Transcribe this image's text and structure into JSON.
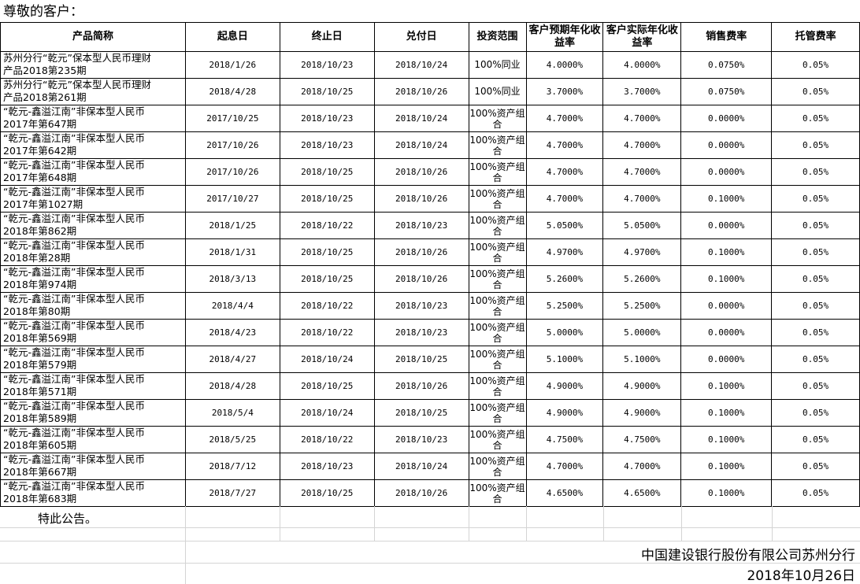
{
  "greeting": "尊敬的客户：",
  "headers": [
    "产品简称",
    "起息日",
    "终止日",
    "兑付日",
    "投资范围",
    "客户预期年化收益率",
    "客户实际年化收益率",
    "销售费率",
    "托管费率"
  ],
  "rows": [
    {
      "name": [
        "苏州分行“乾元”保本型人民币理财",
        "产品2018第235期"
      ],
      "start": "2018/1/26",
      "end": "2018/10/23",
      "pay": "2018/10/24",
      "scope": "100%同业",
      "expected": "4.0000%",
      "actual": "4.0000%",
      "sales_fee": "0.0750%",
      "custody_fee": "0.05%"
    },
    {
      "name": [
        "苏州分行“乾元”保本型人民币理财",
        "产品2018第261期"
      ],
      "start": "2018/4/28",
      "end": "2018/10/25",
      "pay": "2018/10/26",
      "scope": "100%同业",
      "expected": "3.7000%",
      "actual": "3.7000%",
      "sales_fee": "0.0750%",
      "custody_fee": "0.05%"
    },
    {
      "name": [
        "“乾元-鑫溢江南”非保本型人民币",
        "2017年第647期"
      ],
      "start": "2017/10/25",
      "end": "2018/10/23",
      "pay": "2018/10/24",
      "scope": "100%资产组合",
      "expected": "4.7000%",
      "actual": "4.7000%",
      "sales_fee": "0.0000%",
      "custody_fee": "0.05%"
    },
    {
      "name": [
        "“乾元-鑫溢江南”非保本型人民币",
        "2017年第642期"
      ],
      "start": "2017/10/26",
      "end": "2018/10/23",
      "pay": "2018/10/24",
      "scope": "100%资产组合",
      "expected": "4.7000%",
      "actual": "4.7000%",
      "sales_fee": "0.0000%",
      "custody_fee": "0.05%"
    },
    {
      "name": [
        "“乾元-鑫溢江南”非保本型人民币",
        "2017年第648期"
      ],
      "start": "2017/10/26",
      "end": "2018/10/25",
      "pay": "2018/10/26",
      "scope": "100%资产组合",
      "expected": "4.7000%",
      "actual": "4.7000%",
      "sales_fee": "0.0000%",
      "custody_fee": "0.05%"
    },
    {
      "name": [
        "“乾元-鑫溢江南”非保本型人民币",
        "2017年第1027期"
      ],
      "start": "2017/10/27",
      "end": "2018/10/25",
      "pay": "2018/10/26",
      "scope": "100%资产组合",
      "expected": "4.7000%",
      "actual": "4.7000%",
      "sales_fee": "0.1000%",
      "custody_fee": "0.05%"
    },
    {
      "name": [
        "“乾元-鑫溢江南”非保本型人民币",
        "2018年第862期"
      ],
      "start": "2018/1/25",
      "end": "2018/10/22",
      "pay": "2018/10/23",
      "scope": "100%资产组合",
      "expected": "5.0500%",
      "actual": "5.0500%",
      "sales_fee": "0.0000%",
      "custody_fee": "0.05%"
    },
    {
      "name": [
        "“乾元-鑫溢江南”非保本型人民币",
        "2018年第28期"
      ],
      "start": "2018/1/31",
      "end": "2018/10/25",
      "pay": "2018/10/26",
      "scope": "100%资产组合",
      "expected": "4.9700%",
      "actual": "4.9700%",
      "sales_fee": "0.1000%",
      "custody_fee": "0.05%"
    },
    {
      "name": [
        "“乾元-鑫溢江南”非保本型人民币",
        "2018年第974期"
      ],
      "start": "2018/3/13",
      "end": "2018/10/25",
      "pay": "2018/10/26",
      "scope": "100%资产组合",
      "expected": "5.2600%",
      "actual": "5.2600%",
      "sales_fee": "0.1000%",
      "custody_fee": "0.05%"
    },
    {
      "name": [
        "“乾元-鑫溢江南”非保本型人民币",
        "2018年第80期"
      ],
      "start": "2018/4/4",
      "end": "2018/10/22",
      "pay": "2018/10/23",
      "scope": "100%资产组合",
      "expected": "5.2500%",
      "actual": "5.2500%",
      "sales_fee": "0.0000%",
      "custody_fee": "0.05%"
    },
    {
      "name": [
        "“乾元-鑫溢江南”非保本型人民币",
        "2018年第569期"
      ],
      "start": "2018/4/23",
      "end": "2018/10/22",
      "pay": "2018/10/23",
      "scope": "100%资产组合",
      "expected": "5.0000%",
      "actual": "5.0000%",
      "sales_fee": "0.0000%",
      "custody_fee": "0.05%"
    },
    {
      "name": [
        "“乾元-鑫溢江南”非保本型人民币",
        "2018年第579期"
      ],
      "start": "2018/4/27",
      "end": "2018/10/24",
      "pay": "2018/10/25",
      "scope": "100%资产组合",
      "expected": "5.1000%",
      "actual": "5.1000%",
      "sales_fee": "0.0000%",
      "custody_fee": "0.05%"
    },
    {
      "name": [
        "“乾元-鑫溢江南”非保本型人民币",
        "2018年第571期"
      ],
      "start": "2018/4/28",
      "end": "2018/10/25",
      "pay": "2018/10/26",
      "scope": "100%资产组合",
      "expected": "4.9000%",
      "actual": "4.9000%",
      "sales_fee": "0.1000%",
      "custody_fee": "0.05%"
    },
    {
      "name": [
        "“乾元-鑫溢江南”非保本型人民币",
        "2018年第589期"
      ],
      "start": "2018/5/4",
      "end": "2018/10/24",
      "pay": "2018/10/25",
      "scope": "100%资产组合",
      "expected": "4.9000%",
      "actual": "4.9000%",
      "sales_fee": "0.1000%",
      "custody_fee": "0.05%"
    },
    {
      "name": [
        "“乾元-鑫溢江南”非保本型人民币",
        "2018年第605期"
      ],
      "start": "2018/5/25",
      "end": "2018/10/22",
      "pay": "2018/10/23",
      "scope": "100%资产组合",
      "expected": "4.7500%",
      "actual": "4.7500%",
      "sales_fee": "0.1000%",
      "custody_fee": "0.05%"
    },
    {
      "name": [
        "“乾元-鑫溢江南”非保本型人民币",
        "2018年第667期"
      ],
      "start": "2018/7/12",
      "end": "2018/10/23",
      "pay": "2018/10/24",
      "scope": "100%资产组合",
      "expected": "4.7000%",
      "actual": "4.7000%",
      "sales_fee": "0.1000%",
      "custody_fee": "0.05%"
    },
    {
      "name": [
        "“乾元-鑫溢江南”非保本型人民币",
        "2018年第683期"
      ],
      "start": "2018/7/27",
      "end": "2018/10/25",
      "pay": "2018/10/26",
      "scope": "100%资产组合",
      "expected": "4.6500%",
      "actual": "4.6500%",
      "sales_fee": "0.1000%",
      "custody_fee": "0.05%"
    }
  ],
  "footer": {
    "notice": "特此公告。",
    "bank": "中国建设银行股份有限公司苏州分行",
    "date": "2018年10月26日"
  }
}
